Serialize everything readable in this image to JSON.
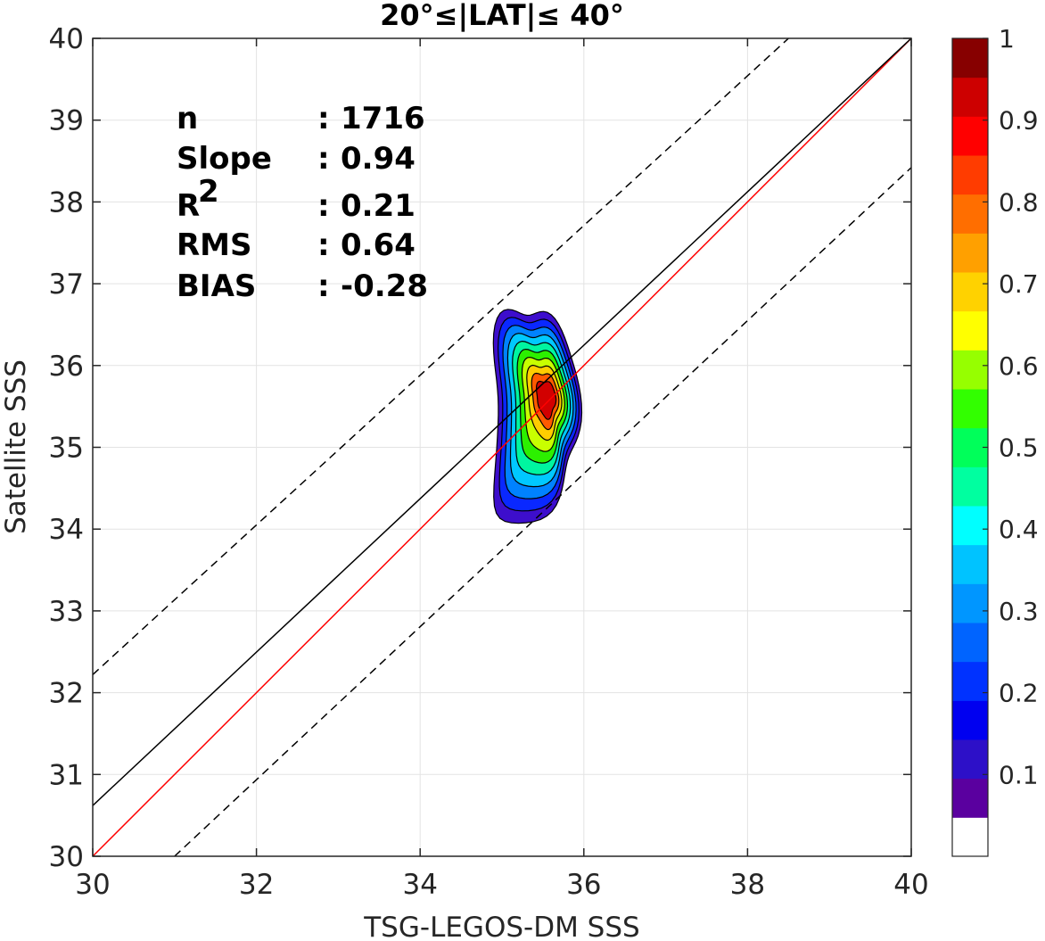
{
  "chart_data": {
    "type": "contour",
    "title": "20°≤|LAT|≤ 40°",
    "xlabel": "TSG-LEGOS-DM SSS",
    "ylabel": "Satellite SSS",
    "xlim": [
      30,
      40
    ],
    "ylim": [
      30,
      40
    ],
    "xticks": [
      "30",
      "32",
      "34",
      "36",
      "38",
      "40"
    ],
    "yticks": [
      "30",
      "31",
      "32",
      "33",
      "34",
      "35",
      "36",
      "37",
      "38",
      "39",
      "40"
    ],
    "grid": true,
    "lines": [
      {
        "name": "1:1 line",
        "color": "#ff0000",
        "style": "solid",
        "points": [
          [
            30,
            30
          ],
          [
            40,
            40
          ]
        ]
      },
      {
        "name": "regression fit",
        "color": "#000000",
        "style": "solid",
        "points": [
          [
            30,
            30.62
          ],
          [
            40,
            40
          ]
        ]
      },
      {
        "name": "upper bound",
        "color": "#000000",
        "style": "dashed",
        "points": [
          [
            30,
            32.22
          ],
          [
            38.5,
            40
          ]
        ]
      },
      {
        "name": "lower bound",
        "color": "#000000",
        "style": "dashed",
        "points": [
          [
            31,
            30
          ],
          [
            40,
            38.42
          ]
        ]
      }
    ],
    "stats": [
      {
        "label": "n",
        "sep": ":",
        "value": "1716"
      },
      {
        "label": "Slope",
        "sep": ":",
        "value": "0.94"
      },
      {
        "label": "R",
        "sup": "2",
        "sep": ":",
        "value": "0.21"
      },
      {
        "label": "RMS",
        "sep": ":",
        "value": "0.64"
      },
      {
        "label": "BIAS",
        "sep": ":",
        "value": "-0.28"
      }
    ],
    "density_peak": {
      "x": 35.55,
      "y": 35.6
    },
    "contour_levels": [
      {
        "level": 0.05,
        "color": "#3d0ecc"
      },
      {
        "level": 0.15,
        "color": "#0a28ff"
      },
      {
        "level": 0.25,
        "color": "#0082ff"
      },
      {
        "level": 0.35,
        "color": "#00c8ff"
      },
      {
        "level": 0.45,
        "color": "#00f5a0"
      },
      {
        "level": 0.55,
        "color": "#2cf000"
      },
      {
        "level": 0.65,
        "color": "#c8ff00"
      },
      {
        "level": 0.75,
        "color": "#ffcd00"
      },
      {
        "level": 0.85,
        "color": "#ff5a00"
      },
      {
        "level": 0.95,
        "color": "#d20000"
      }
    ],
    "colorbar": {
      "range": [
        0,
        1
      ],
      "tick_labels": [
        "0.1",
        "0.2",
        "0.3",
        "0.4",
        "0.5",
        "0.6",
        "0.7",
        "0.8",
        "0.9",
        "1"
      ],
      "tick_values": [
        0.1,
        0.2,
        0.3,
        0.4,
        0.5,
        0.6,
        0.7,
        0.8,
        0.9,
        1.0
      ],
      "colors": [
        "#ffffff",
        "#5a009f",
        "#2d10c8",
        "#0000f0",
        "#0032ff",
        "#0064ff",
        "#0096ff",
        "#00c3ff",
        "#00ffff",
        "#00ffa0",
        "#00ff5a",
        "#32ff00",
        "#96ff00",
        "#ffff00",
        "#ffd200",
        "#ffa000",
        "#ff6e00",
        "#ff3c00",
        "#ff0000",
        "#cd0000",
        "#870000"
      ]
    }
  }
}
